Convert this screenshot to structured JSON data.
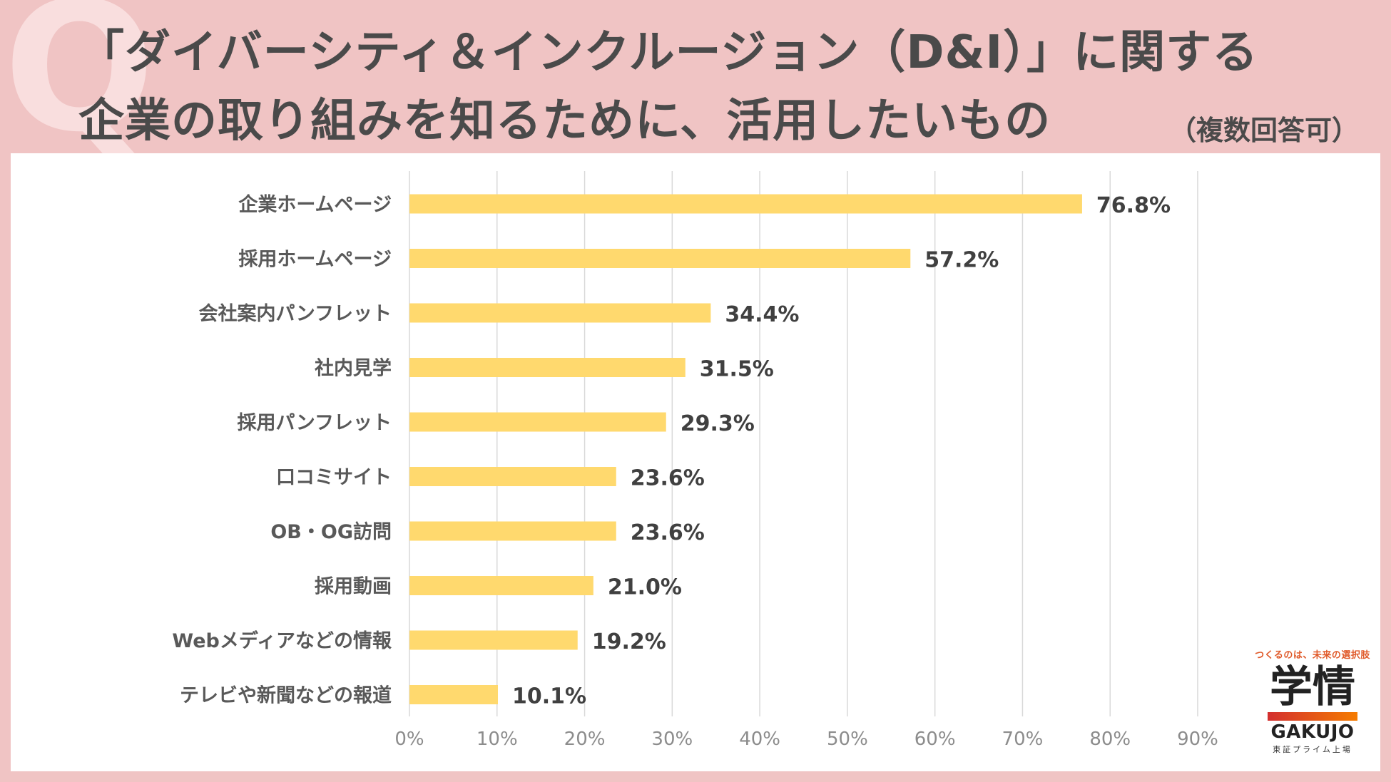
{
  "header": {
    "q_mark": "Q",
    "title_line1": "「ダイバーシティ＆インクルージョン（D&I）」に関する",
    "title_line2": "企業の取り組みを知るために、活用したいもの",
    "note": "（複数回答可）"
  },
  "chart_data": {
    "type": "bar",
    "orientation": "horizontal",
    "categories": [
      "企業ホームページ",
      "採用ホームページ",
      "会社案内パンフレット",
      "社内見学",
      "採用パンフレット",
      "口コミサイト",
      "OB・OG訪問",
      "採用動画",
      "Webメディアなどの情報",
      "テレビや新聞などの報道"
    ],
    "values": [
      76.8,
      57.2,
      34.4,
      31.5,
      29.3,
      23.6,
      23.6,
      21.0,
      19.2,
      10.1
    ],
    "value_labels": [
      "76.8%",
      "57.2%",
      "34.4%",
      "31.5%",
      "29.3%",
      "23.6%",
      "23.6%",
      "21.0%",
      "19.2%",
      "10.1%"
    ],
    "x_ticks": [
      0,
      10,
      20,
      30,
      40,
      50,
      60,
      70,
      80,
      90
    ],
    "x_tick_labels": [
      "0%",
      "10%",
      "20%",
      "30%",
      "40%",
      "50%",
      "60%",
      "70%",
      "80%",
      "90%"
    ],
    "xlim": [
      0,
      90
    ],
    "grid": true,
    "bar_color": "#ffd96e",
    "grid_color": "#d9d9d9"
  },
  "logo": {
    "tagline": "つくるのは、未来の選択肢",
    "kanji": "学情",
    "english": "GAKUJO",
    "subline": "東証プライム上場"
  }
}
